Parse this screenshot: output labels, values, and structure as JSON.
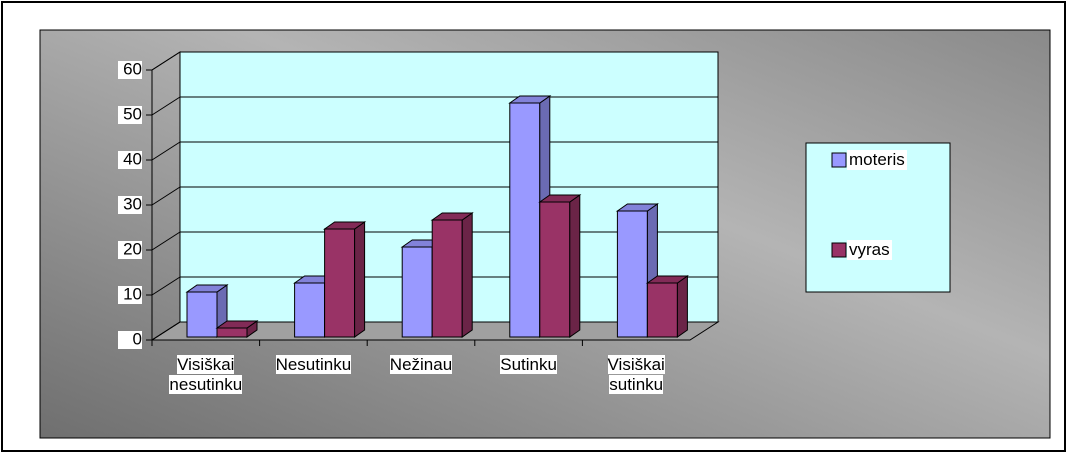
{
  "chart_data": {
    "type": "bar3d",
    "categories": [
      "Visiškai nesutinku",
      "Nesutinku",
      "Nežinau",
      "Sutinku",
      "Visiškai sutinku"
    ],
    "series": [
      {
        "name": "moteris",
        "color": "#9999ff",
        "values": [
          10,
          12,
          20,
          52,
          28
        ]
      },
      {
        "name": "vyras",
        "color": "#993366",
        "values": [
          2,
          24,
          26,
          30,
          12
        ]
      }
    ],
    "ylim": [
      0,
      60
    ],
    "yticks": [
      0,
      10,
      20,
      30,
      40,
      50,
      60
    ],
    "grid": true,
    "legend": "right"
  }
}
